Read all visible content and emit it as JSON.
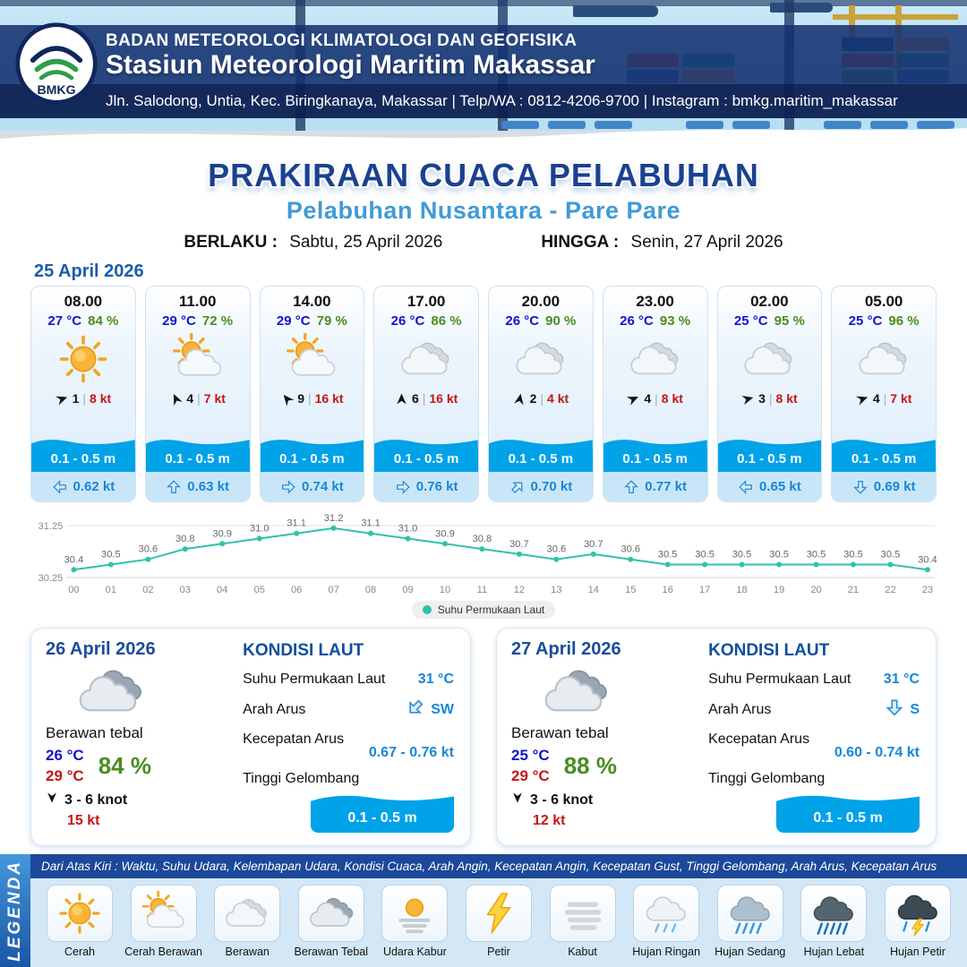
{
  "header": {
    "org": "BADAN METEOROLOGI KLIMATOLOGI DAN GEOFISIKA",
    "station": "Stasiun Meteorologi Maritim Makassar",
    "address": "Jln. Salodong, Untia, Kec. Biringkanaya, Makassar | Telp/WA : 0812-4206-9700 | Instagram : bmkg.maritim_makassar",
    "logo": "BMKG"
  },
  "title": "PRAKIRAAN CUACA PELABUHAN",
  "subtitle": "Pelabuhan Nusantara - Pare Pare",
  "validity": {
    "from_label": "BERLAKU :",
    "from_value": "Sabtu, 25 April 2026",
    "to_label": "HINGGA :",
    "to_value": "Senin, 27 April 2026"
  },
  "day1": {
    "date": "25 April 2026",
    "cards": [
      {
        "time": "08.00",
        "temp": "27 °C",
        "rh": "84 %",
        "icon": "cerah",
        "wind_rot": -20,
        "wind_min": "1",
        "wind_max": "8 kt",
        "wave": "0.1 - 0.5 m",
        "current_rot": 180,
        "current": "0.62 kt"
      },
      {
        "time": "11.00",
        "temp": "29 °C",
        "rh": "72 %",
        "icon": "cerah-berawan",
        "wind_rot": -115,
        "wind_min": "4",
        "wind_max": "7 kt",
        "wave": "0.1 - 0.5 m",
        "current_rot": -90,
        "current": "0.63 kt"
      },
      {
        "time": "14.00",
        "temp": "29 °C",
        "rh": "79 %",
        "icon": "cerah-berawan",
        "wind_rot": -130,
        "wind_min": "9",
        "wind_max": "16 kt",
        "wave": "0.1 - 0.5 m",
        "current_rot": 0,
        "current": "0.74 kt"
      },
      {
        "time": "17.00",
        "temp": "26 °C",
        "rh": "86 %",
        "icon": "berawan",
        "wind_rot": -90,
        "wind_min": "6",
        "wind_max": "16 kt",
        "wave": "0.1 - 0.5 m",
        "current_rot": 0,
        "current": "0.76 kt"
      },
      {
        "time": "20.00",
        "temp": "26 °C",
        "rh": "90 %",
        "icon": "berawan",
        "wind_rot": -80,
        "wind_min": "2",
        "wind_max": "4 kt",
        "wave": "0.1 - 0.5 m",
        "current_rot": -45,
        "current": "0.70 kt"
      },
      {
        "time": "23.00",
        "temp": "26 °C",
        "rh": "93 %",
        "icon": "berawan",
        "wind_rot": -25,
        "wind_min": "4",
        "wind_max": "8 kt",
        "wave": "0.1 - 0.5 m",
        "current_rot": -90,
        "current": "0.77 kt"
      },
      {
        "time": "02.00",
        "temp": "25 °C",
        "rh": "95 %",
        "icon": "berawan",
        "wind_rot": -15,
        "wind_min": "3",
        "wind_max": "8 kt",
        "wave": "0.1 - 0.5 m",
        "current_rot": 180,
        "current": "0.65 kt"
      },
      {
        "time": "05.00",
        "temp": "25 °C",
        "rh": "96 %",
        "icon": "berawan",
        "wind_rot": -20,
        "wind_min": "4",
        "wind_max": "7 kt",
        "wave": "0.1 - 0.5 m",
        "current_rot": 90,
        "current": "0.69 kt"
      }
    ]
  },
  "chart_data": {
    "type": "line",
    "x": [
      "00",
      "01",
      "02",
      "03",
      "04",
      "05",
      "06",
      "07",
      "08",
      "09",
      "10",
      "11",
      "12",
      "13",
      "14",
      "15",
      "16",
      "17",
      "18",
      "19",
      "20",
      "21",
      "22",
      "23"
    ],
    "values": [
      30.4,
      30.5,
      30.6,
      30.8,
      30.9,
      31.0,
      31.1,
      31.2,
      31.1,
      31.0,
      30.9,
      30.8,
      30.7,
      30.6,
      30.7,
      30.6,
      30.5,
      30.5,
      30.5,
      30.5,
      30.5,
      30.5,
      30.5,
      30.4
    ],
    "ylim": [
      30.25,
      31.25
    ],
    "yticks": [
      "31.25",
      "30.25"
    ],
    "legend": "Suhu Permukaan Laut",
    "line_color": "#2fc2a7",
    "grid": true,
    "legend_position": "bottom"
  },
  "days": [
    {
      "date": "26 April 2026",
      "icon": "berawan-tebal",
      "condition": "Berawan tebal",
      "temp_min": "26 °C",
      "temp_max": "29 °C",
      "rh": "84 %",
      "wind": "3 - 6 knot",
      "gust": "15 kt",
      "sea": {
        "heading": "KONDISI LAUT",
        "sst_label": "Suhu Permukaan Laut",
        "sst": "31 °C",
        "dir_label": "Arah Arus",
        "dir": "SW",
        "dir_rot": 135,
        "speed_label": "Kecepatan Arus",
        "speed": "0.67 - 0.76 kt",
        "wave_label": "Tinggi Gelombang",
        "wave": "0.1 - 0.5 m"
      }
    },
    {
      "date": "27 April 2026",
      "icon": "berawan-tebal",
      "condition": "Berawan tebal",
      "temp_min": "25 °C",
      "temp_max": "29 °C",
      "rh": "88 %",
      "wind": "3 - 6 knot",
      "gust": "12 kt",
      "sea": {
        "heading": "KONDISI LAUT",
        "sst_label": "Suhu Permukaan Laut",
        "sst": "31 °C",
        "dir_label": "Arah Arus",
        "dir": "S",
        "dir_rot": 90,
        "speed_label": "Kecepatan Arus",
        "speed": "0.60 - 0.74 kt",
        "wave_label": "Tinggi Gelombang",
        "wave": "0.1 - 0.5 m"
      }
    }
  ],
  "legend": {
    "title": "LEGENDA",
    "note": "Dari Atas Kiri : Waktu, Suhu Udara, Kelembapan Udara, Kondisi Cuaca, Arah Angin, Kecepatan Angin, Kecepatan Gust, Tinggi Gelombang, Arah Arus, Kecepatan Arus",
    "items": [
      {
        "label": "Cerah",
        "icon": "cerah"
      },
      {
        "label": "Cerah Berawan",
        "icon": "cerah-berawan"
      },
      {
        "label": "Berawan",
        "icon": "berawan"
      },
      {
        "label": "Berawan Tebal",
        "icon": "berawan-tebal"
      },
      {
        "label": "Udara Kabur",
        "icon": "udara-kabur"
      },
      {
        "label": "Petir",
        "icon": "petir"
      },
      {
        "label": "Kabut",
        "icon": "kabut"
      },
      {
        "label": "Hujan Ringan",
        "icon": "hujan-ringan"
      },
      {
        "label": "Hujan Sedang",
        "icon": "hujan-sedang"
      },
      {
        "label": "Hujan Lebat",
        "icon": "hujan-lebat"
      },
      {
        "label": "Hujan Petir",
        "icon": "hujan-petir"
      }
    ]
  },
  "colors": {
    "accent_navy": "#173a7c",
    "subtitle_blue": "#3f9bd6",
    "temp_blue": "#1414cc",
    "rh_green": "#4b8c1f",
    "wind_red": "#c81414",
    "wave_blue": "#00a2e8",
    "current_blue": "#1787d8",
    "chart_line": "#2fc2a7"
  }
}
